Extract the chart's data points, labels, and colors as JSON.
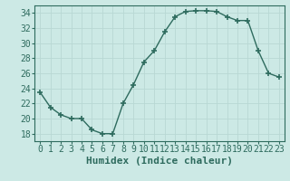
{
  "x": [
    0,
    1,
    2,
    3,
    4,
    5,
    6,
    7,
    8,
    9,
    10,
    11,
    12,
    13,
    14,
    15,
    16,
    17,
    18,
    19,
    20,
    21,
    22,
    23
  ],
  "y": [
    23.5,
    21.5,
    20.5,
    20.0,
    20.0,
    18.5,
    18.0,
    18.0,
    22.0,
    24.5,
    27.5,
    29.0,
    31.5,
    33.5,
    34.2,
    34.3,
    34.3,
    34.2,
    33.5,
    33.0,
    33.0,
    29.0,
    26.0,
    25.5
  ],
  "line_color": "#2e6b5e",
  "marker": "+",
  "marker_size": 4,
  "bg_color": "#cce9e5",
  "grid_color": "#b8d8d4",
  "xlabel": "Humidex (Indice chaleur)",
  "ylabel_ticks": [
    18,
    20,
    22,
    24,
    26,
    28,
    30,
    32,
    34
  ],
  "xlim": [
    -0.5,
    23.5
  ],
  "ylim": [
    17.0,
    35.0
  ],
  "xlabel_fontsize": 8,
  "tick_fontsize": 7,
  "line_width": 1.0
}
